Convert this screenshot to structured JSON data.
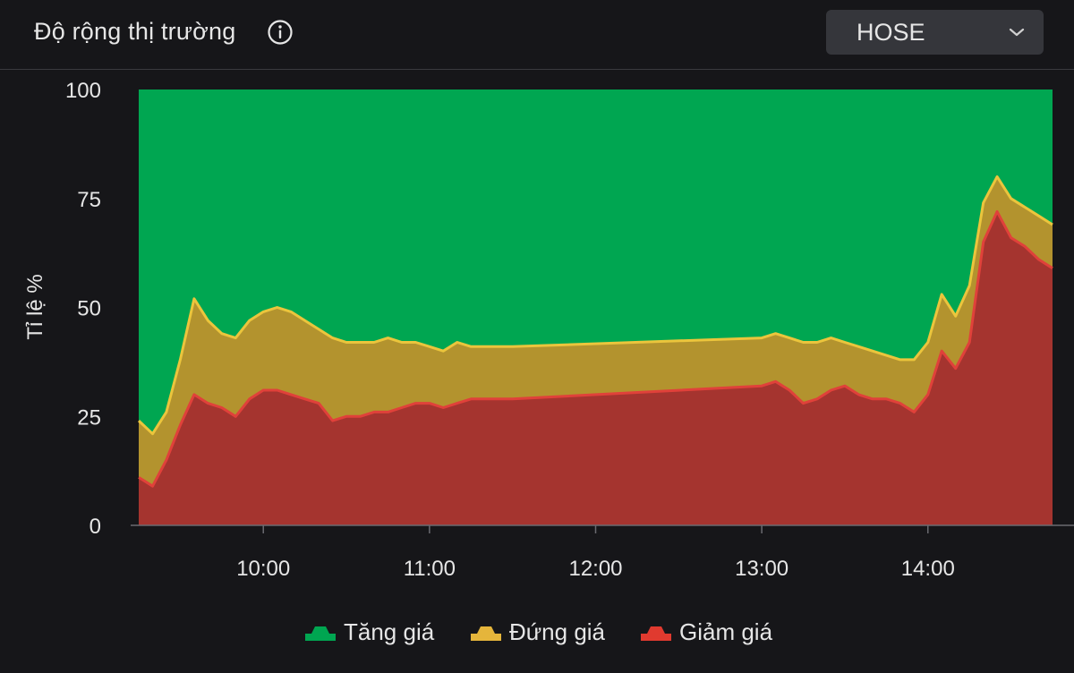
{
  "header": {
    "title": "Độ rộng thị trường",
    "info_icon": "info-circle-icon",
    "exchange_select": {
      "value": "HOSE",
      "icon": "chevron-down-icon"
    }
  },
  "legend": {
    "items": [
      {
        "label": "Tăng giá",
        "color": "#00a651",
        "icon": "mountain-icon"
      },
      {
        "label": "Đứng giá",
        "color": "#e5b53b",
        "icon": "mountain-icon"
      },
      {
        "label": "Giảm giá",
        "color": "#e03a2f",
        "icon": "mountain-icon"
      }
    ]
  },
  "chart_data": {
    "type": "area",
    "stacked": true,
    "ylabel": "Tỉ lệ %",
    "xlabel": "",
    "ylim": [
      0,
      100
    ],
    "yticks": [
      0,
      25,
      50,
      75,
      100
    ],
    "xlim": [
      "09:15",
      "14:45"
    ],
    "xticks": [
      "10:00",
      "11:00",
      "12:00",
      "13:00",
      "14:00"
    ],
    "grid": false,
    "legend_position": "bottom",
    "colors": {
      "tang": "#00a651",
      "dung_fill": "#b3932e",
      "dung_line": "#ebc53c",
      "giam_fill": "#a5342f",
      "giam_line": "#e0413a"
    },
    "x": [
      "09:15",
      "09:20",
      "09:25",
      "09:30",
      "09:35",
      "09:40",
      "09:45",
      "09:50",
      "09:55",
      "10:00",
      "10:05",
      "10:10",
      "10:15",
      "10:20",
      "10:25",
      "10:30",
      "10:35",
      "10:40",
      "10:45",
      "10:50",
      "10:55",
      "11:00",
      "11:05",
      "11:10",
      "11:15",
      "11:20",
      "11:25",
      "11:30",
      "13:00",
      "13:05",
      "13:10",
      "13:15",
      "13:20",
      "13:25",
      "13:30",
      "13:35",
      "13:40",
      "13:45",
      "13:50",
      "13:55",
      "14:00",
      "14:05",
      "14:10",
      "14:15",
      "14:20",
      "14:25",
      "14:30",
      "14:35",
      "14:40",
      "14:45"
    ],
    "series": [
      {
        "name": "Giảm giá",
        "values": [
          11,
          9,
          15,
          23,
          30,
          28,
          27,
          25,
          29,
          31,
          31,
          30,
          29,
          28,
          24,
          25,
          25,
          26,
          26,
          27,
          28,
          28,
          27,
          28,
          29,
          29,
          29,
          29,
          32,
          33,
          31,
          28,
          29,
          31,
          32,
          30,
          29,
          29,
          28,
          26,
          30,
          40,
          36,
          42,
          65,
          72,
          66,
          64,
          61,
          59
        ]
      },
      {
        "name": "Đứng giá",
        "values": [
          24,
          21,
          26,
          38,
          52,
          47,
          44,
          43,
          47,
          49,
          50,
          49,
          47,
          45,
          43,
          42,
          42,
          42,
          43,
          42,
          42,
          41,
          40,
          42,
          41,
          41,
          41,
          41,
          43,
          44,
          43,
          42,
          42,
          43,
          42,
          41,
          40,
          39,
          38,
          38,
          42,
          53,
          48,
          55,
          74,
          80,
          75,
          73,
          71,
          69
        ]
      },
      {
        "name": "Tăng giá",
        "values": [
          100,
          100,
          100,
          100,
          100,
          100,
          100,
          100,
          100,
          100,
          100,
          100,
          100,
          100,
          100,
          100,
          100,
          100,
          100,
          100,
          100,
          100,
          100,
          100,
          100,
          100,
          100,
          100,
          100,
          100,
          100,
          100,
          100,
          100,
          100,
          100,
          100,
          100,
          100,
          100,
          100,
          100,
          100,
          100,
          100,
          100,
          100,
          100,
          100,
          100
        ]
      }
    ]
  }
}
